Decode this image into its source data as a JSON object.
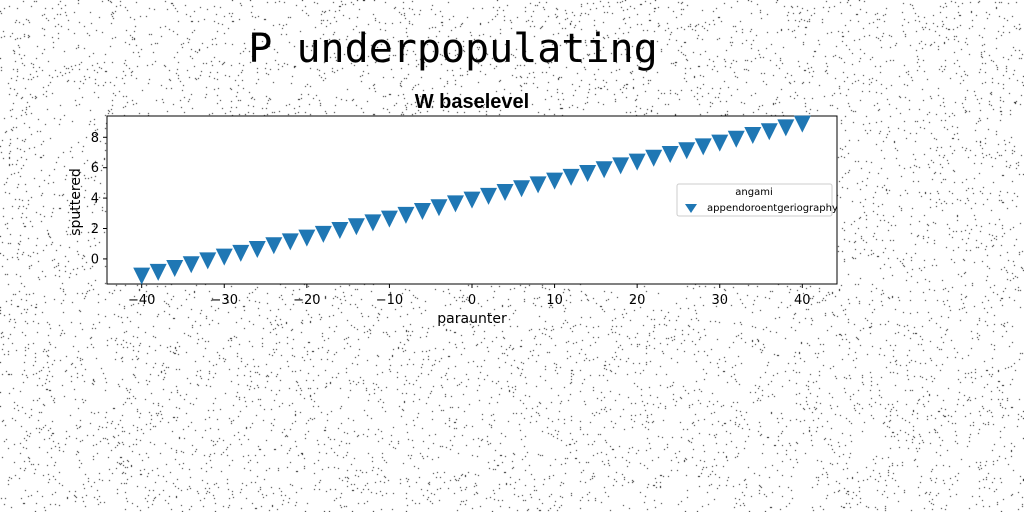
{
  "figure": {
    "suptitle": "P underpopulating"
  },
  "chart_data": {
    "type": "scatter",
    "title": "W baselevel",
    "xlabel": "paraunter",
    "ylabel": "sputtered",
    "xlim": [
      -44.2,
      44.2
    ],
    "ylim": [
      -1.65,
      9.4
    ],
    "xticks": [
      -40,
      -30,
      -20,
      -10,
      0,
      10,
      20,
      30,
      40
    ],
    "xtick_labels": [
      "−40",
      "−30",
      "−20",
      "−10",
      "0",
      "10",
      "20",
      "30",
      "40"
    ],
    "yticks": [
      0,
      2,
      4,
      6,
      8
    ],
    "ytick_labels": [
      "0",
      "2",
      "4",
      "6",
      "8"
    ],
    "grid": false,
    "legend": {
      "title": "angami",
      "placement": "center-right"
    },
    "series": [
      {
        "name": "appendoroentgeriography",
        "marker": "triangle-down",
        "color": "#1f77b4",
        "x": [
          -40,
          -38,
          -36,
          -34,
          -32,
          -30,
          -28,
          -26,
          -24,
          -22,
          -20,
          -18,
          -16,
          -14,
          -12,
          -10,
          -8,
          -6,
          -4,
          -2,
          0,
          2,
          4,
          6,
          8,
          10,
          12,
          14,
          16,
          18,
          20,
          22,
          24,
          26,
          28,
          30,
          32,
          34,
          36,
          38,
          40
        ],
        "y": [
          -1.1,
          -0.85,
          -0.6,
          -0.35,
          -0.1,
          0.15,
          0.4,
          0.65,
          0.9,
          1.15,
          1.4,
          1.65,
          1.9,
          2.15,
          2.4,
          2.65,
          2.9,
          3.15,
          3.4,
          3.65,
          3.9,
          4.15,
          4.4,
          4.65,
          4.9,
          5.15,
          5.4,
          5.65,
          5.9,
          6.15,
          6.4,
          6.65,
          6.9,
          7.15,
          7.4,
          7.65,
          7.9,
          8.15,
          8.4,
          8.65,
          8.9
        ]
      }
    ]
  }
}
